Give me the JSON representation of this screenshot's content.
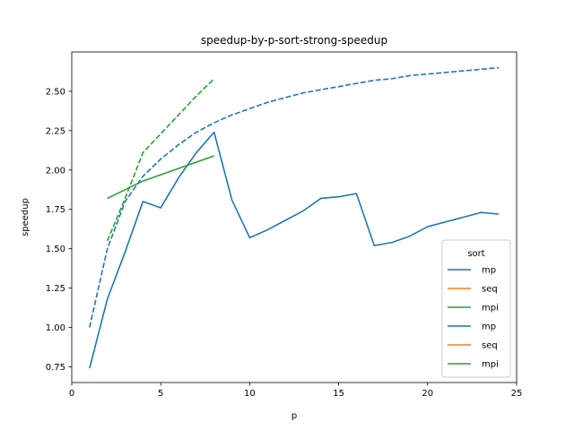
{
  "chart_data": {
    "type": "line",
    "title": "speedup-by-p-sort-strong-speedup",
    "xlabel": "p",
    "ylabel": "speedup",
    "xlim": [
      0,
      25
    ],
    "ylim": [
      0.65,
      2.75
    ],
    "x_ticks": [
      0,
      5,
      10,
      15,
      20,
      25
    ],
    "y_ticks": [
      0.75,
      1.0,
      1.25,
      1.5,
      1.75,
      2.0,
      2.25,
      2.5
    ],
    "grid": false,
    "legend": {
      "title": "sort",
      "placement": "lower-right",
      "entries": [
        {
          "label": "mp",
          "color": "#1f77b4"
        },
        {
          "label": "seq",
          "color": "#ff7f0e"
        },
        {
          "label": "mpi",
          "color": "#2ca02c"
        },
        {
          "label": "mp",
          "color": "#1f77b4"
        },
        {
          "label": "seq",
          "color": "#ff7f0e"
        },
        {
          "label": "mpi",
          "color": "#2ca02c"
        }
      ]
    },
    "series": [
      {
        "key": "mp_measured",
        "color": "#1f77b4",
        "style": "solid",
        "points": [
          [
            1,
            0.74
          ],
          [
            2,
            1.18
          ],
          [
            3,
            1.48
          ],
          [
            4,
            1.8
          ],
          [
            5,
            1.76
          ],
          [
            6,
            1.95
          ],
          [
            7,
            2.11
          ],
          [
            8,
            2.24
          ],
          [
            9,
            1.81
          ],
          [
            10,
            1.57
          ],
          [
            11,
            1.62
          ],
          [
            12,
            1.68
          ],
          [
            13,
            1.74
          ],
          [
            14,
            1.82
          ],
          [
            15,
            1.83
          ],
          [
            16,
            1.85
          ],
          [
            17,
            1.52
          ],
          [
            18,
            1.54
          ],
          [
            19,
            1.58
          ],
          [
            20,
            1.64
          ],
          [
            21,
            1.67
          ],
          [
            22,
            1.7
          ],
          [
            23,
            1.73
          ],
          [
            24,
            1.72
          ]
        ]
      },
      {
        "key": "mpi_measured",
        "color": "#2ca02c",
        "style": "solid",
        "points": [
          [
            2,
            1.82
          ],
          [
            4,
            1.93
          ],
          [
            8,
            2.09
          ]
        ]
      },
      {
        "key": "mp_model",
        "color": "#1f77b4",
        "style": "dashed",
        "points": [
          [
            1,
            1.0
          ],
          [
            2,
            1.5
          ],
          [
            3,
            1.8
          ],
          [
            4,
            1.96
          ],
          [
            5,
            2.07
          ],
          [
            6,
            2.16
          ],
          [
            7,
            2.24
          ],
          [
            8,
            2.3
          ],
          [
            9,
            2.35
          ],
          [
            10,
            2.39
          ],
          [
            11,
            2.43
          ],
          [
            12,
            2.46
          ],
          [
            13,
            2.49
          ],
          [
            14,
            2.51
          ],
          [
            15,
            2.53
          ],
          [
            16,
            2.55
          ],
          [
            17,
            2.57
          ],
          [
            18,
            2.58
          ],
          [
            19,
            2.6
          ],
          [
            20,
            2.61
          ],
          [
            21,
            2.62
          ],
          [
            22,
            2.63
          ],
          [
            23,
            2.64
          ],
          [
            24,
            2.65
          ]
        ]
      },
      {
        "key": "mpi_model",
        "color": "#2ca02c",
        "style": "dashed",
        "points": [
          [
            2,
            1.55
          ],
          [
            3,
            1.82
          ],
          [
            4,
            2.11
          ],
          [
            5,
            2.23
          ],
          [
            6,
            2.35
          ],
          [
            7,
            2.47
          ],
          [
            8,
            2.58
          ]
        ]
      }
    ]
  }
}
